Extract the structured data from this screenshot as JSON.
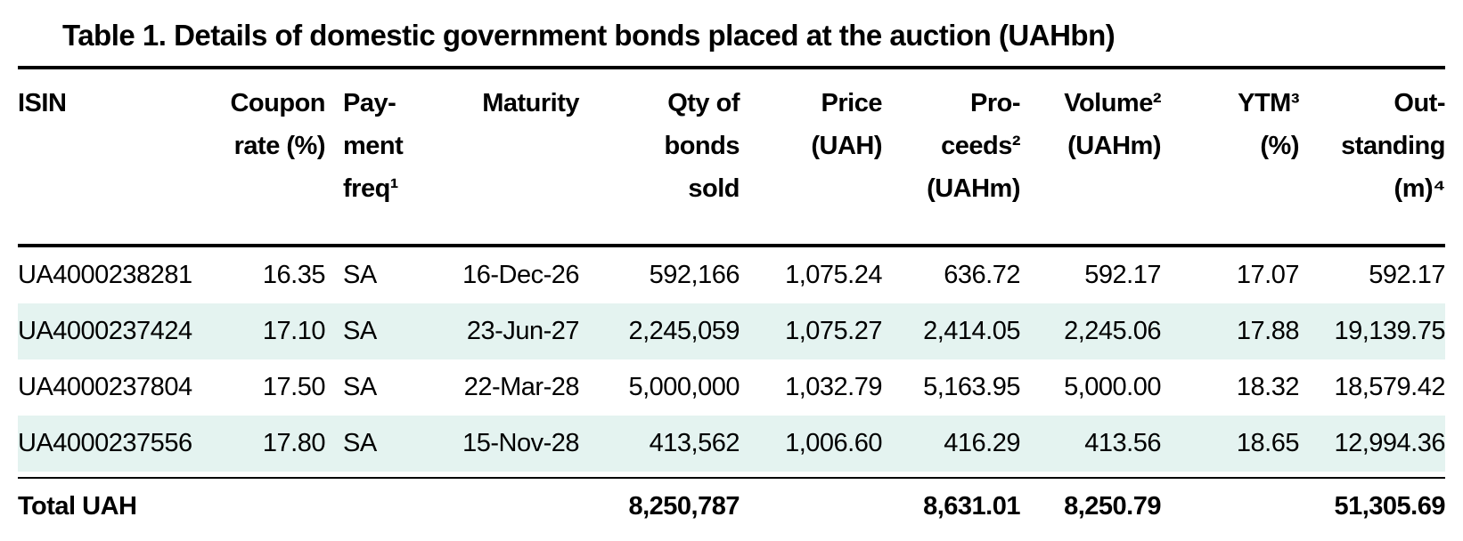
{
  "title": "Table 1. Details of domestic government bonds placed at the auction (UAHbn)",
  "colors": {
    "stripe": "#e4f3f0",
    "text": "#000000",
    "rule": "#000000"
  },
  "table": {
    "columns": [
      {
        "id": "isin",
        "align": "left",
        "lines": [
          "ISIN"
        ]
      },
      {
        "id": "coupon-rate",
        "align": "right",
        "lines": [
          "Coupon",
          "rate (%)"
        ]
      },
      {
        "id": "payment-freq",
        "align": "left",
        "lines": [
          "Pay-",
          "ment",
          "freq¹"
        ]
      },
      {
        "id": "maturity",
        "align": "right",
        "lines": [
          "Maturity"
        ]
      },
      {
        "id": "qty-sold",
        "align": "right",
        "lines": [
          "Qty of",
          "bonds",
          "sold"
        ]
      },
      {
        "id": "price",
        "align": "right",
        "lines": [
          "Price",
          "(UAH)"
        ]
      },
      {
        "id": "proceeds",
        "align": "right",
        "lines": [
          "Pro-",
          "ceeds²",
          "(UAHm)"
        ]
      },
      {
        "id": "volume",
        "align": "right",
        "lines": [
          "Volume²",
          "(UAHm)"
        ]
      },
      {
        "id": "ytm",
        "align": "right",
        "lines": [
          "YTM³",
          "(%)"
        ]
      },
      {
        "id": "outstanding",
        "align": "right",
        "lines": [
          "Out-",
          "standing",
          "(m)⁴"
        ]
      }
    ],
    "rows": [
      {
        "cells": [
          "UA4000238281",
          "16.35",
          "SA",
          "16-Dec-26",
          "592,166",
          "1,075.24",
          "636.72",
          "592.17",
          "17.07",
          "592.17"
        ]
      },
      {
        "cells": [
          "UA4000237424",
          "17.10",
          "SA",
          "23-Jun-27",
          "2,245,059",
          "1,075.27",
          "2,414.05",
          "2,245.06",
          "17.88",
          "19,139.75"
        ]
      },
      {
        "cells": [
          "UA4000237804",
          "17.50",
          "SA",
          "22-Mar-28",
          "5,000,000",
          "1,032.79",
          "5,163.95",
          "5,000.00",
          "18.32",
          "18,579.42"
        ]
      },
      {
        "cells": [
          "UA4000237556",
          "17.80",
          "SA",
          "15-Nov-28",
          "413,562",
          "1,006.60",
          "416.29",
          "413.56",
          "18.65",
          "12,994.36"
        ]
      }
    ],
    "total": {
      "cells": [
        "Total UAH",
        "",
        "",
        "",
        "8,250,787",
        "",
        "8,631.01",
        "8,250.79",
        "",
        "51,305.69"
      ]
    }
  }
}
